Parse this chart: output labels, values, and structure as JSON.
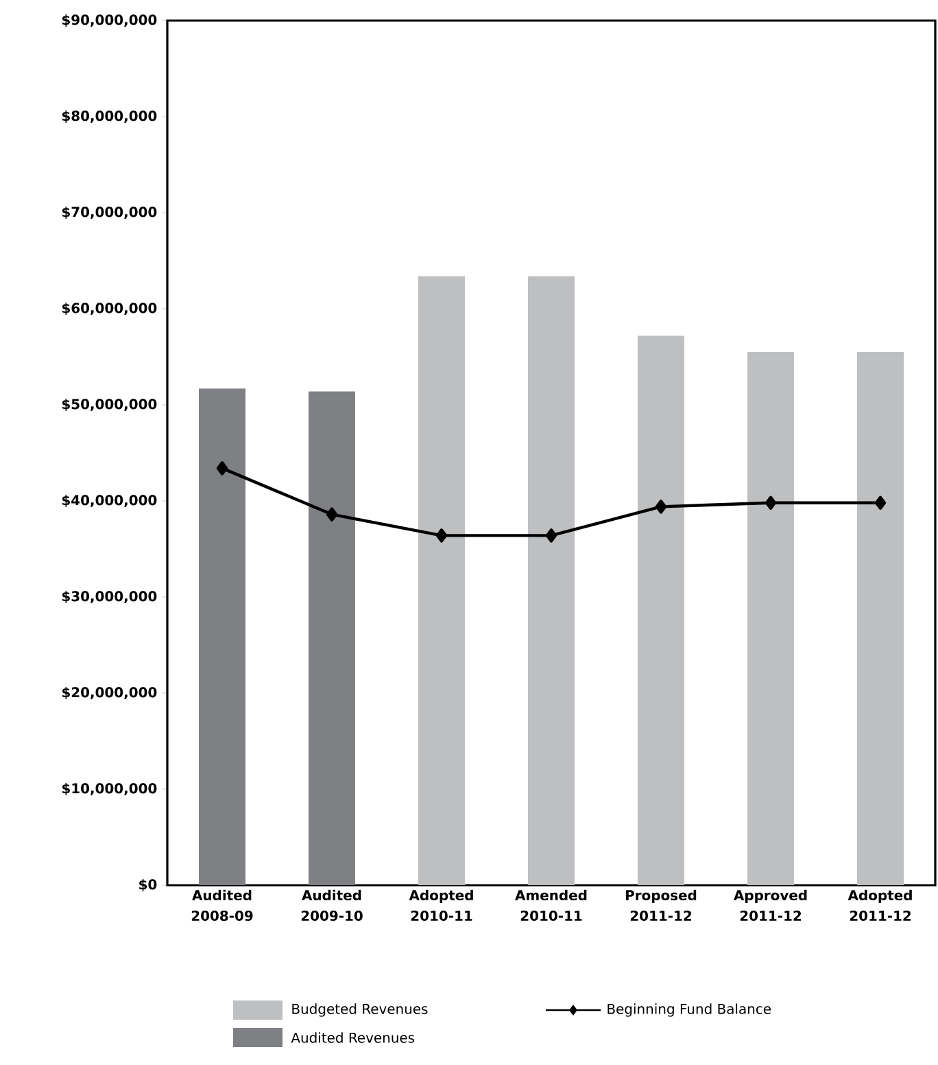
{
  "chart_data": {
    "type": "bar",
    "categories": [
      "Audited 2008-09",
      "Audited 2009-10",
      "Adopted 2010-11",
      "Amended 2010-11",
      "Proposed 2011-12",
      "Approved 2011-12",
      "Adopted 2011-12"
    ],
    "series": [
      {
        "name": "Budgeted Revenues",
        "color": "#bebfc1",
        "values": [
          null,
          null,
          63400000,
          63400000,
          57200000,
          55500000,
          55500000
        ]
      },
      {
        "name": "Audited Revenues",
        "color": "#7f8084",
        "values": [
          51700000,
          51400000,
          null,
          null,
          null,
          null,
          null
        ]
      },
      {
        "name": "Beginning Fund Balance",
        "type": "line",
        "color": "#000000",
        "marker": "diamond",
        "values": [
          43400000,
          38600000,
          36400000,
          36400000,
          39400000,
          39800000,
          39800000
        ]
      }
    ],
    "ylim": [
      0,
      90000000
    ],
    "yticks": [
      {
        "value": 0,
        "label": "$0"
      },
      {
        "value": 10000000,
        "label": "$10,000,000"
      },
      {
        "value": 20000000,
        "label": "$20,000,000"
      },
      {
        "value": 30000000,
        "label": "$30,000,000"
      },
      {
        "value": 40000000,
        "label": "$40,000,000"
      },
      {
        "value": 50000000,
        "label": "$50,000,000"
      },
      {
        "value": 60000000,
        "label": "$60,000,000"
      },
      {
        "value": 70000000,
        "label": "$70,000,000"
      },
      {
        "value": 80000000,
        "label": "$80,000,000"
      },
      {
        "value": 90000000,
        "label": "$90,000,000"
      }
    ],
    "grid": false,
    "legend": "bottom"
  }
}
